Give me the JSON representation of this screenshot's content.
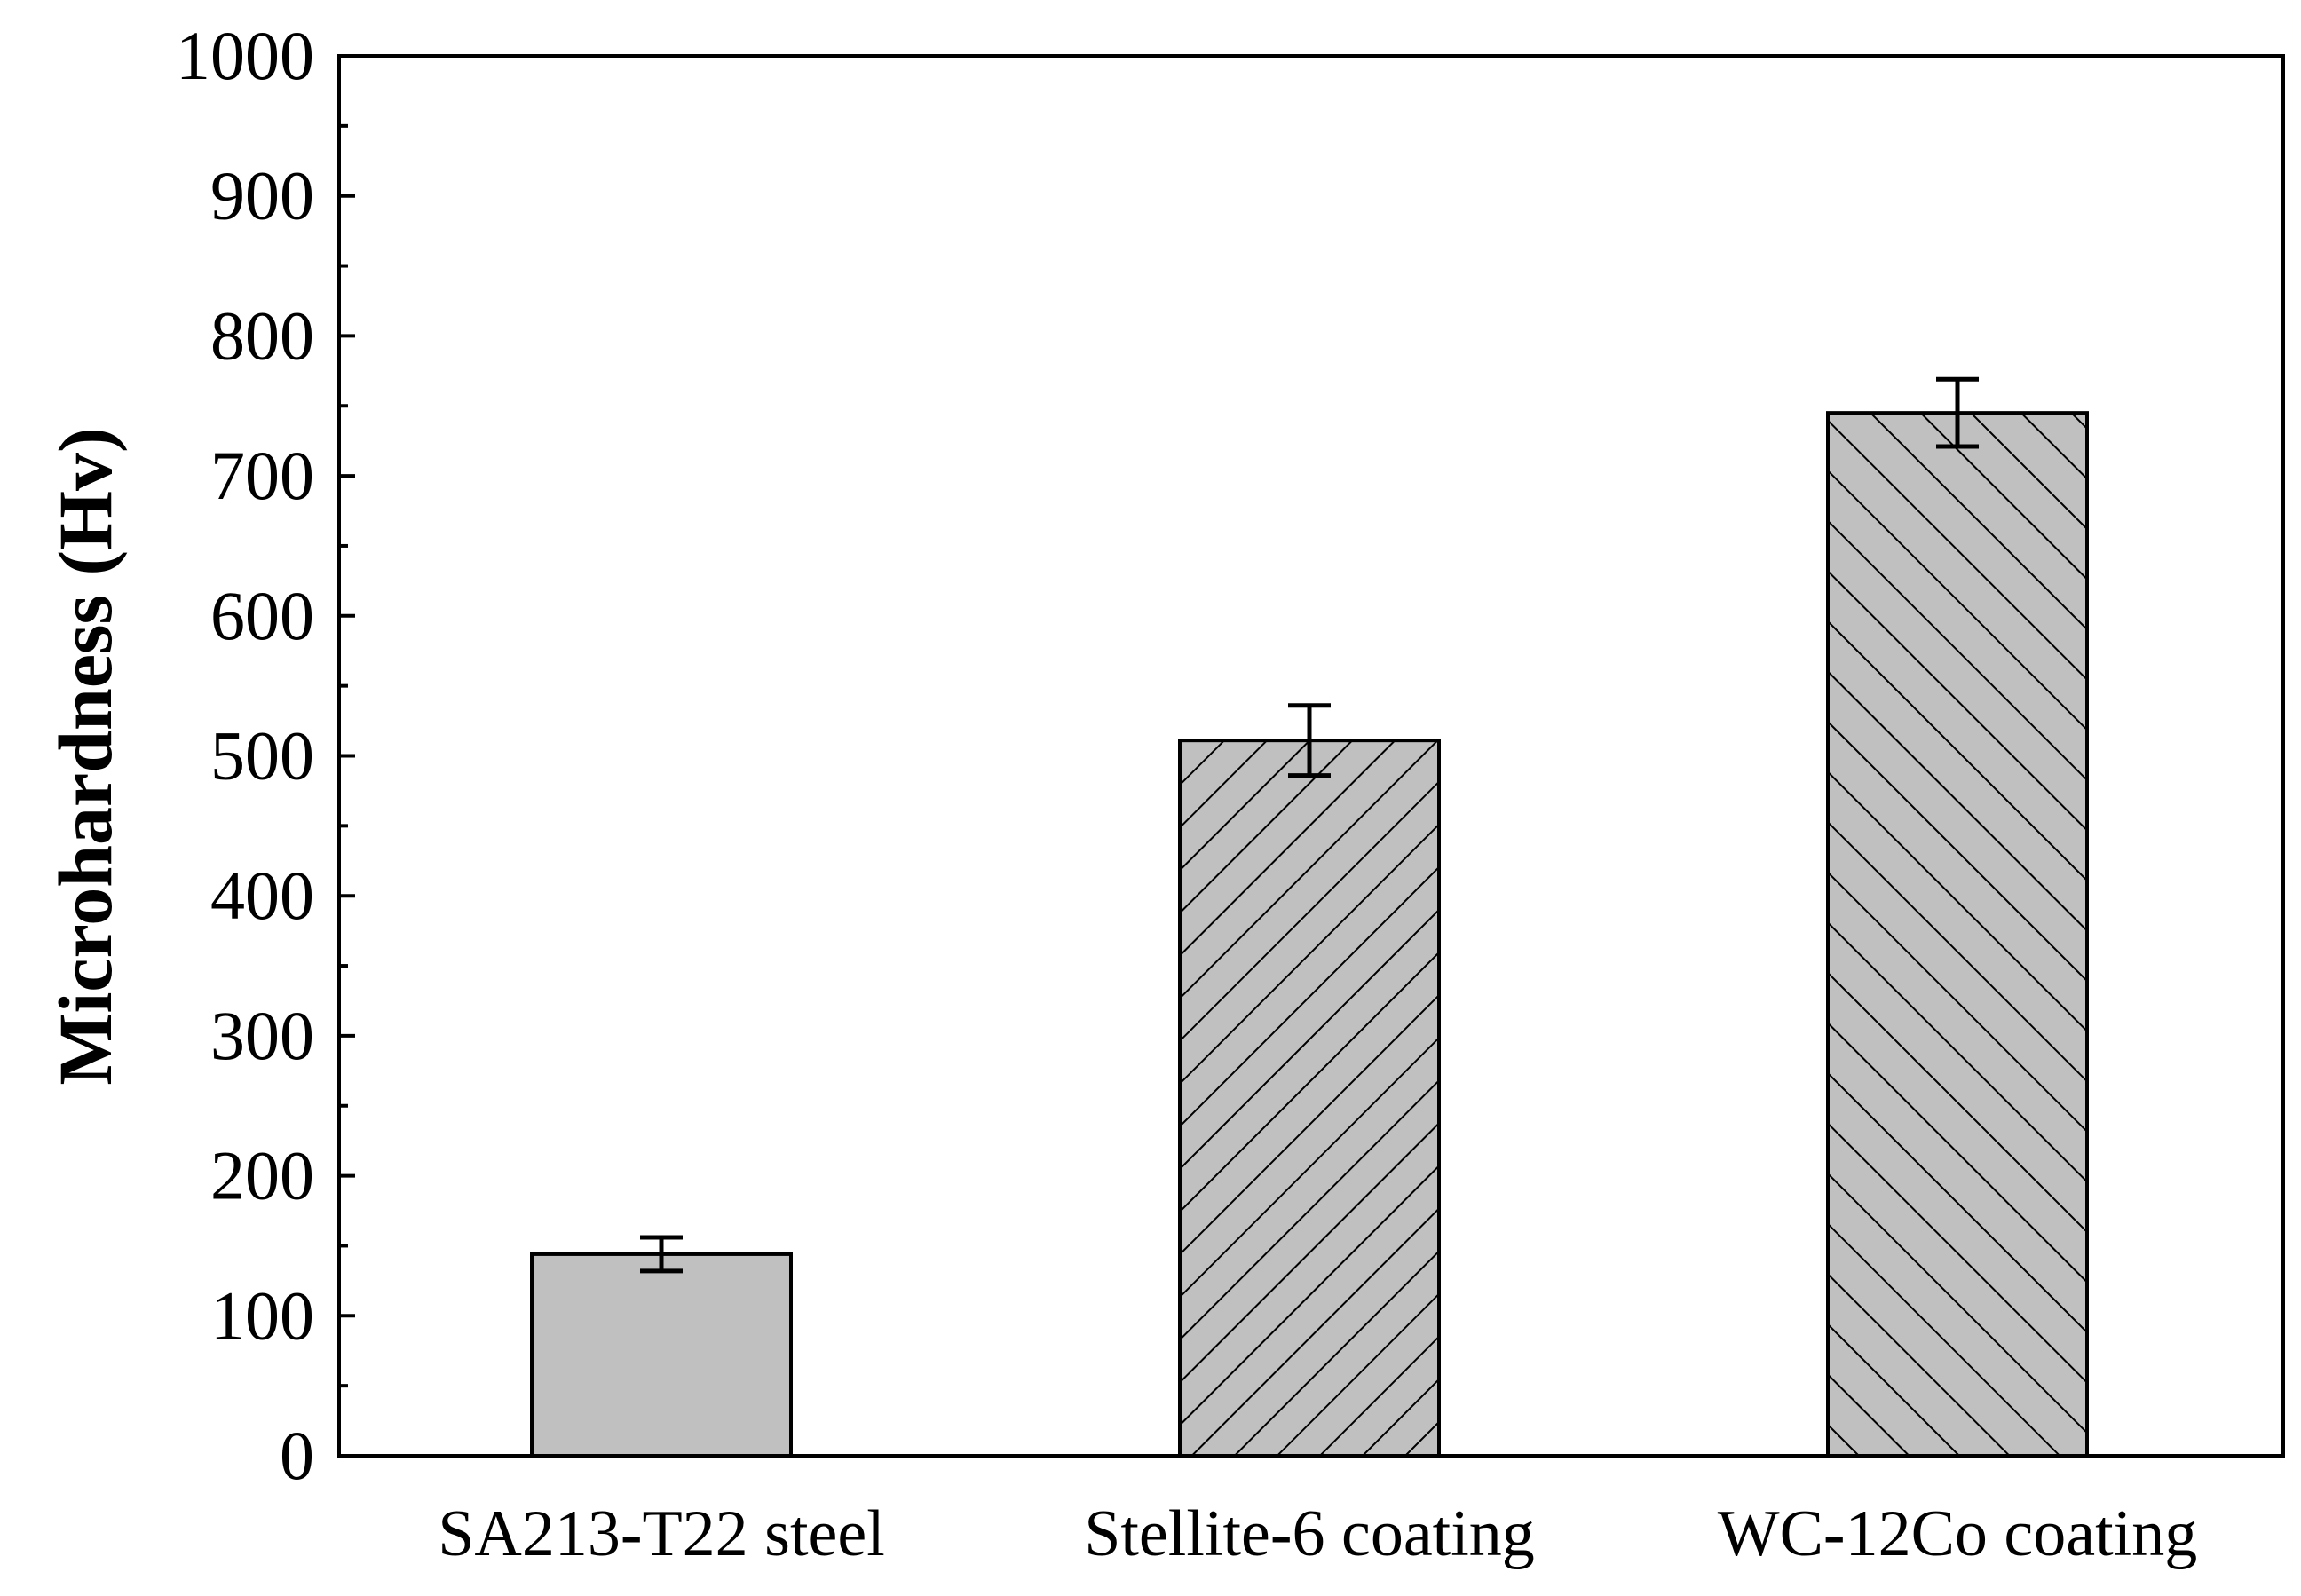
{
  "chart_data": {
    "type": "bar",
    "title": "",
    "xlabel": "",
    "ylabel": "Microhardness (Hv)",
    "ylim": [
      0,
      1000
    ],
    "yticks": [
      0,
      100,
      200,
      300,
      400,
      500,
      600,
      700,
      800,
      900,
      1000
    ],
    "ytick_labels": [
      "0",
      "100",
      "200",
      "300",
      "400",
      "500",
      "600",
      "700",
      "800",
      "900",
      "1000"
    ],
    "minor_tick_step": 50,
    "grid": false,
    "categories": [
      "SA213-T22 steel",
      "Stellite-6 coating",
      "WC-12Co coating"
    ],
    "values": [
      144,
      511,
      745
    ],
    "errors": [
      12,
      25,
      24
    ],
    "patterns": [
      "solid",
      "forward-diagonal",
      "back-diagonal"
    ],
    "bar_color": "#c0c0c0",
    "edge_color": "#000000"
  }
}
